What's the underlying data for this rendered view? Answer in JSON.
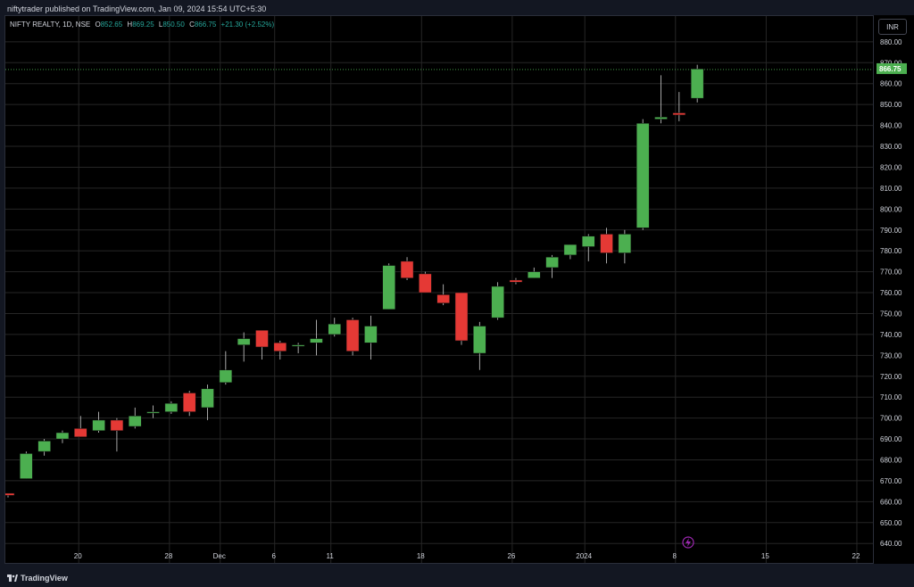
{
  "header": {
    "published": "niftytrader published on TradingView.com, Jan 09, 2024 15:54 UTC+5:30"
  },
  "legend": {
    "name": "NIFTY REALTY, 1D, NSE",
    "o_label": "O",
    "o_value": "852.65",
    "h_label": "H",
    "h_value": "869.25",
    "l_label": "L",
    "l_value": "850.50",
    "c_label": "C",
    "c_value": "866.75",
    "change": "+21.30 (+2.52%)"
  },
  "currency": "INR",
  "footer": {
    "brand": "TradingView"
  },
  "colors": {
    "up": "#4caf50",
    "down": "#e53935",
    "background": "#000000",
    "grid": "#262626",
    "text": "#d1d4dc"
  },
  "chart_data": {
    "type": "candlestick",
    "title": "NIFTY REALTY, 1D, NSE",
    "ylim": [
      640,
      890
    ],
    "y_ticks": [
      640,
      650,
      660,
      670,
      680,
      690,
      700,
      710,
      720,
      730,
      740,
      750,
      760,
      770,
      780,
      790,
      800,
      810,
      820,
      830,
      840,
      850,
      860,
      870,
      880
    ],
    "last_price": "866.75",
    "x_tick_labels": [
      "20",
      "28",
      "Dec",
      "6",
      "11",
      "18",
      "26",
      "2024",
      "8",
      "15",
      "22"
    ],
    "candles": [
      {
        "o": 664,
        "h": 664,
        "l": 662,
        "c": 663
      },
      {
        "o": 671,
        "h": 684,
        "l": 671,
        "c": 683
      },
      {
        "o": 684,
        "h": 690,
        "l": 682,
        "c": 689
      },
      {
        "o": 690,
        "h": 694,
        "l": 688,
        "c": 693
      },
      {
        "o": 695,
        "h": 701,
        "l": 691,
        "c": 691
      },
      {
        "o": 694,
        "h": 703,
        "l": 693,
        "c": 699
      },
      {
        "o": 699,
        "h": 700,
        "l": 684,
        "c": 694
      },
      {
        "o": 696,
        "h": 705,
        "l": 695,
        "c": 701
      },
      {
        "o": 703,
        "h": 706,
        "l": 700,
        "c": 703
      },
      {
        "o": 703,
        "h": 708,
        "l": 702,
        "c": 707
      },
      {
        "o": 712,
        "h": 713,
        "l": 701,
        "c": 703
      },
      {
        "o": 705,
        "h": 716,
        "l": 699,
        "c": 714
      },
      {
        "o": 717,
        "h": 732,
        "l": 716,
        "c": 723
      },
      {
        "o": 735,
        "h": 741,
        "l": 727,
        "c": 738
      },
      {
        "o": 742,
        "h": 742,
        "l": 728,
        "c": 734
      },
      {
        "o": 736,
        "h": 737,
        "l": 728,
        "c": 732
      },
      {
        "o": 735,
        "h": 736,
        "l": 731,
        "c": 735
      },
      {
        "o": 736,
        "h": 747,
        "l": 730,
        "c": 738
      },
      {
        "o": 740,
        "h": 748,
        "l": 739,
        "c": 745
      },
      {
        "o": 747,
        "h": 748,
        "l": 730,
        "c": 732
      },
      {
        "o": 736,
        "h": 749,
        "l": 728,
        "c": 744
      },
      {
        "o": 752,
        "h": 774,
        "l": 752,
        "c": 773
      },
      {
        "o": 775,
        "h": 777,
        "l": 766,
        "c": 767
      },
      {
        "o": 769,
        "h": 770,
        "l": 760,
        "c": 760
      },
      {
        "o": 759,
        "h": 764,
        "l": 754,
        "c": 755
      },
      {
        "o": 760,
        "h": 760,
        "l": 735,
        "c": 737
      },
      {
        "o": 731,
        "h": 746,
        "l": 723,
        "c": 744
      },
      {
        "o": 748,
        "h": 765,
        "l": 747,
        "c": 763
      },
      {
        "o": 766,
        "h": 767,
        "l": 764,
        "c": 765
      },
      {
        "o": 767,
        "h": 772,
        "l": 767,
        "c": 770
      },
      {
        "o": 772,
        "h": 778,
        "l": 767,
        "c": 777
      },
      {
        "o": 778,
        "h": 783,
        "l": 776,
        "c": 783
      },
      {
        "o": 782,
        "h": 788,
        "l": 775,
        "c": 787
      },
      {
        "o": 788,
        "h": 791,
        "l": 774,
        "c": 779
      },
      {
        "o": 779,
        "h": 790,
        "l": 774,
        "c": 788
      },
      {
        "o": 791,
        "h": 843,
        "l": 790,
        "c": 841
      },
      {
        "o": 843,
        "h": 864,
        "l": 841,
        "c": 844
      },
      {
        "o": 846,
        "h": 856,
        "l": 842,
        "c": 845
      },
      {
        "o": 853,
        "h": 869,
        "l": 851,
        "c": 867
      }
    ]
  }
}
